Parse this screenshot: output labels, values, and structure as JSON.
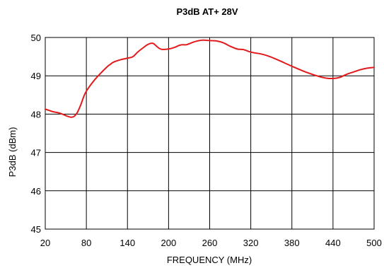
{
  "chart_data": {
    "type": "line",
    "title": "P3dB AT+ 28V",
    "xlabel": "FREQUENCY (MHz)",
    "ylabel": "P3dB (dBm)",
    "xlim": [
      20,
      500
    ],
    "ylim": [
      45,
      50
    ],
    "x_ticks": [
      20,
      80,
      140,
      200,
      260,
      320,
      380,
      440,
      500
    ],
    "y_ticks": [
      45,
      46,
      47,
      48,
      49,
      50
    ],
    "grid": true,
    "series": [
      {
        "color": "#e31a1c",
        "x": [
          20,
          25,
          30,
          35,
          40,
          45,
          50,
          55,
          58,
          62,
          67,
          72,
          76,
          80,
          90,
          100,
          110,
          115,
          120,
          130,
          140,
          148,
          155,
          165,
          170,
          175,
          178,
          182,
          186,
          190,
          195,
          200,
          205,
          210,
          215,
          220,
          226,
          232,
          240,
          250,
          260,
          270,
          280,
          290,
          300,
          305,
          310,
          318,
          325,
          335,
          345,
          360,
          380,
          400,
          420,
          430,
          440,
          450,
          460,
          470,
          480,
          490,
          500
        ],
        "y": [
          48.13,
          48.1,
          48.07,
          48.05,
          48.03,
          48.0,
          47.96,
          47.93,
          47.92,
          47.94,
          48.05,
          48.25,
          48.45,
          48.6,
          48.85,
          49.05,
          49.23,
          49.3,
          49.36,
          49.42,
          49.46,
          49.5,
          49.62,
          49.76,
          49.82,
          49.85,
          49.84,
          49.78,
          49.72,
          49.69,
          49.69,
          49.7,
          49.72,
          49.75,
          49.79,
          49.81,
          49.81,
          49.85,
          49.9,
          49.93,
          49.92,
          49.91,
          49.86,
          49.77,
          49.7,
          49.69,
          49.68,
          49.63,
          49.6,
          49.57,
          49.52,
          49.41,
          49.25,
          49.1,
          48.98,
          48.94,
          48.93,
          48.96,
          49.04,
          49.1,
          49.16,
          49.2,
          49.22
        ]
      }
    ]
  }
}
